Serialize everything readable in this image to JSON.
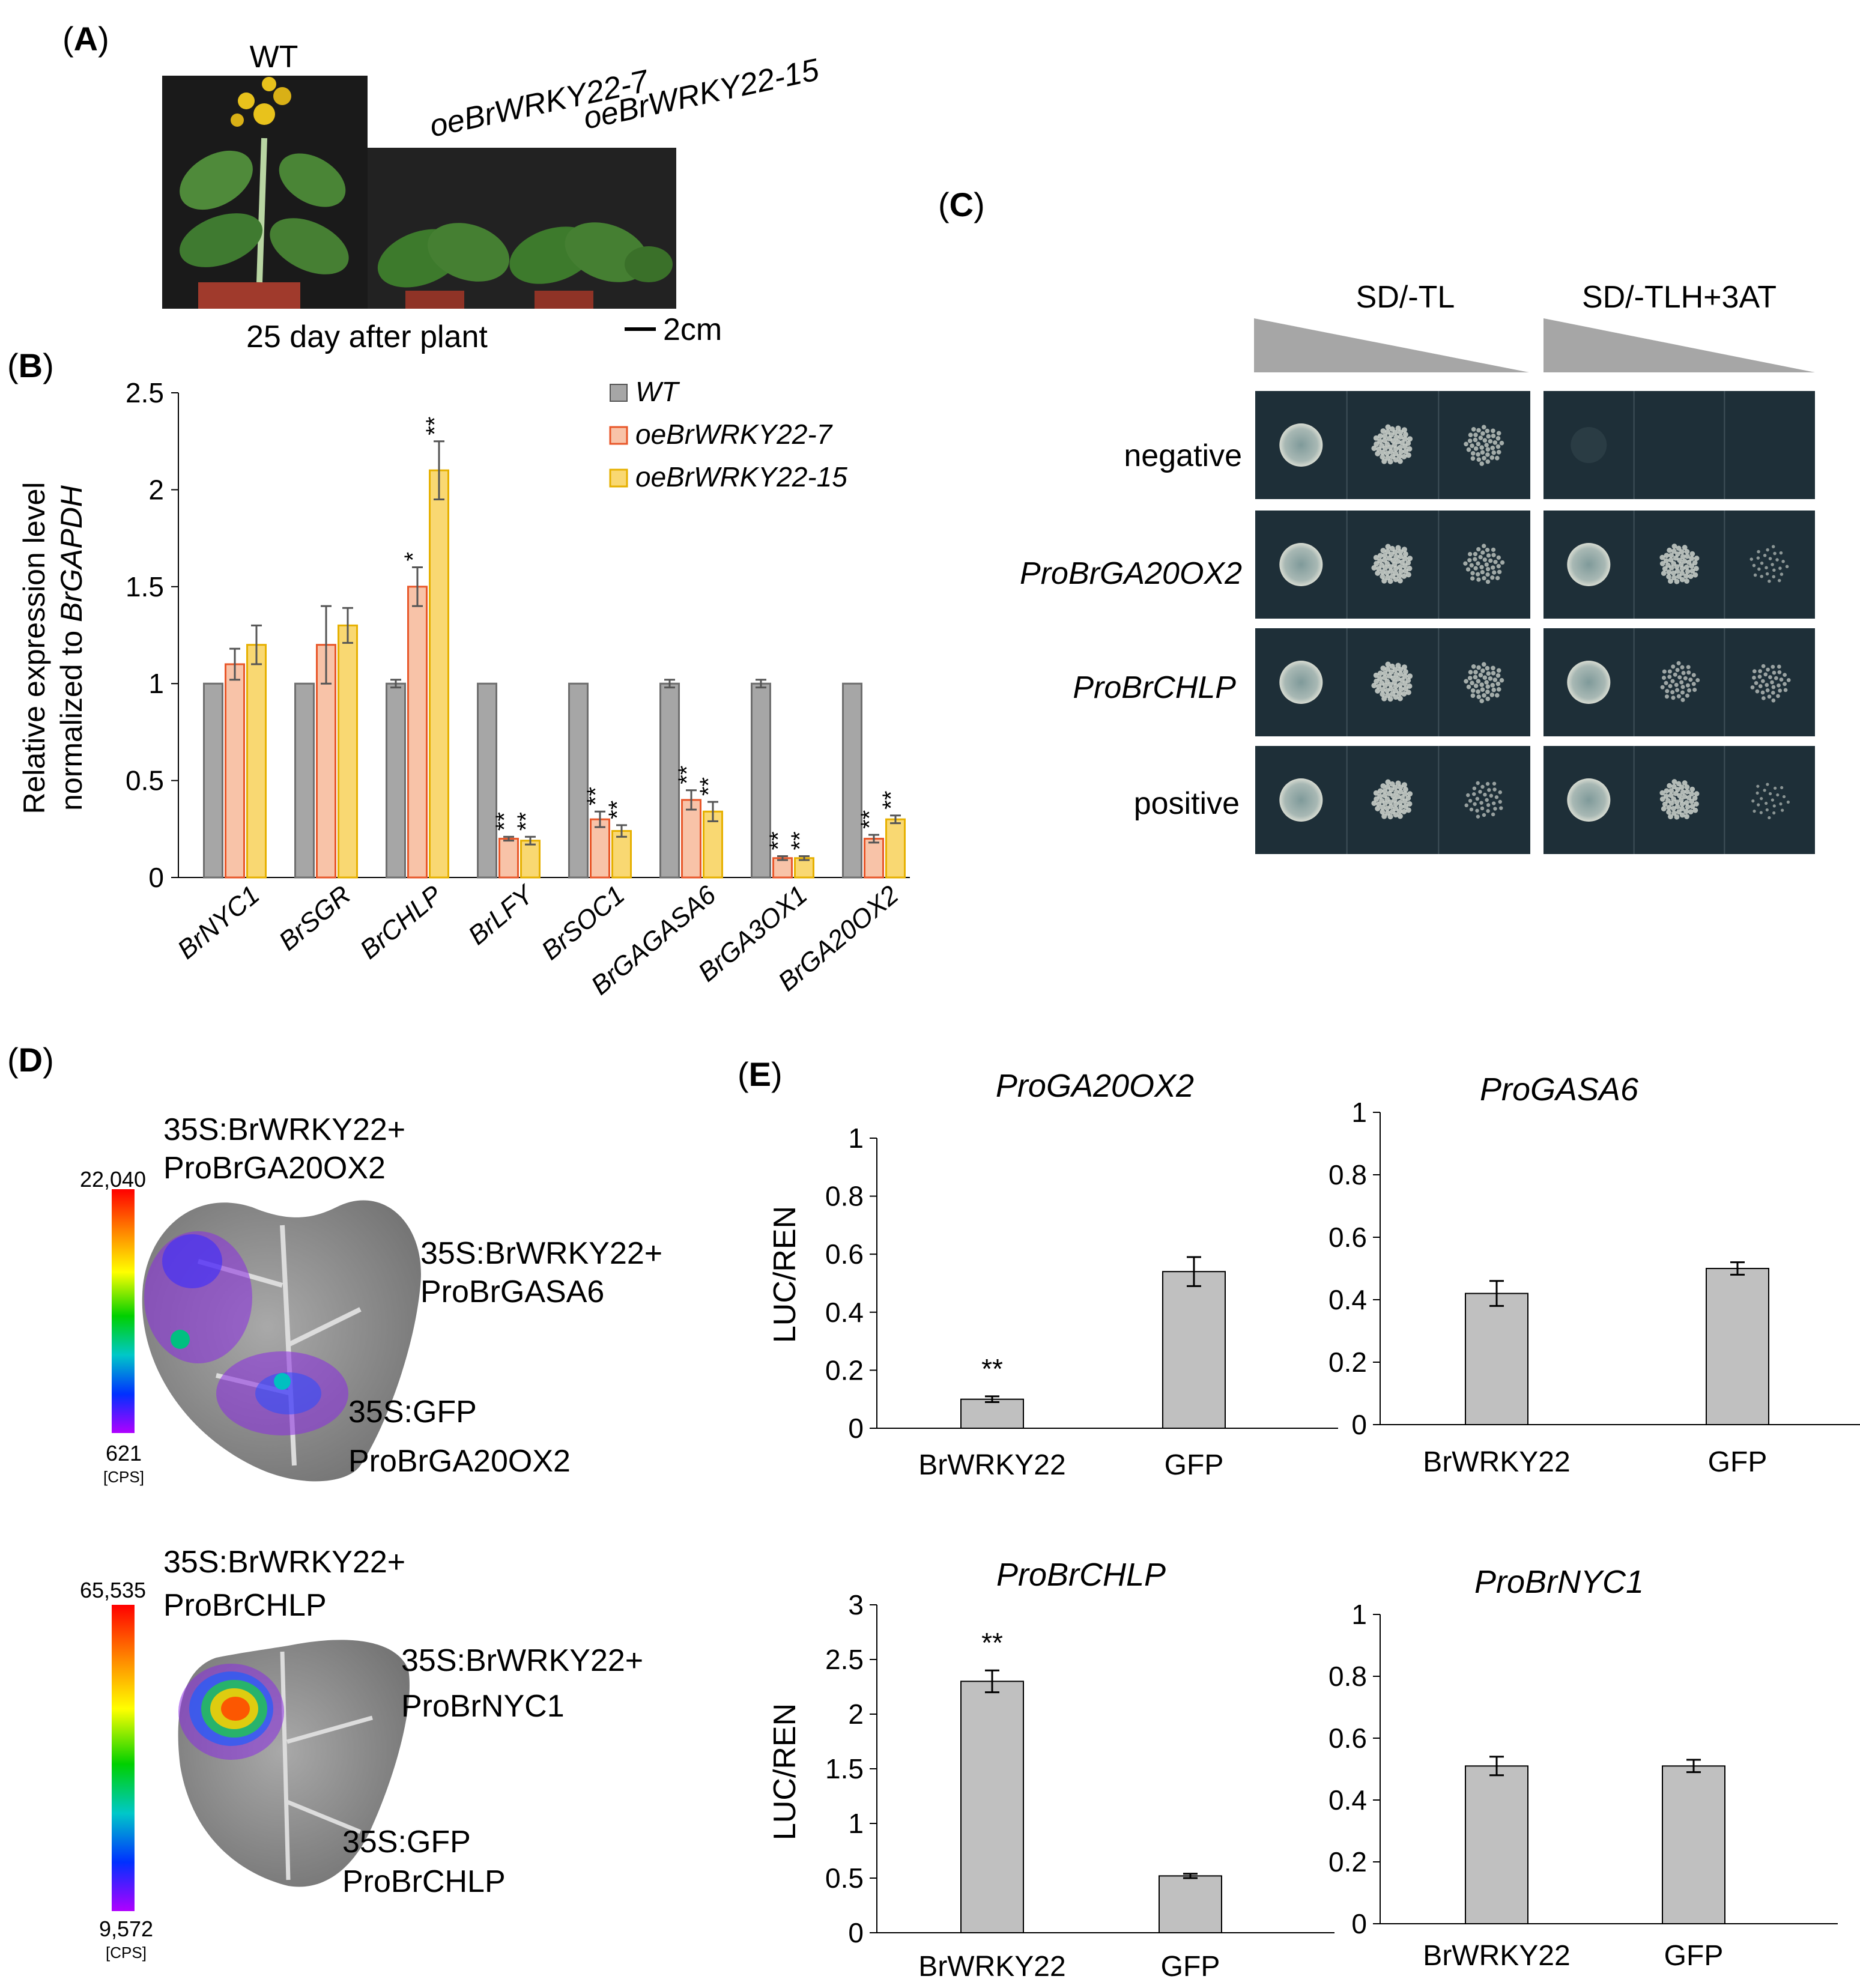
{
  "panels": {
    "a": {
      "label": "A",
      "wt_label": "WT",
      "line7_label": "oeBrWRKY22-7",
      "line15_label": "oeBrWRKY22-15",
      "caption": "25 day after plant",
      "scale_label": "2cm"
    },
    "b": {
      "label": "B"
    },
    "c": {
      "label": "C",
      "media": [
        "SD/-TL",
        "SD/-TLH+3AT"
      ],
      "rows": [
        "negative",
        "ProBrGA20OX2",
        "ProBrCHLP",
        "positive"
      ]
    },
    "d": {
      "label": "D",
      "top": {
        "scale_max": "22,040",
        "scale_min": "621",
        "scale_unit": "[CPS]",
        "label_a1": "35S:BrWRKY22+",
        "label_a2": "ProBrGA20OX2",
        "label_b1": "35S:BrWRKY22+",
        "label_b2": "ProBrGASA6",
        "label_c1": "35S:GFP",
        "label_c2": "ProBrGA20OX2"
      },
      "bottom": {
        "scale_max": "65,535",
        "scale_min": "9,572",
        "scale_unit": "[CPS]",
        "label_a1": "35S:BrWRKY22+",
        "label_a2": "ProBrCHLP",
        "label_b1": "35S:BrWRKY22+",
        "label_b2": "ProBrNYC1",
        "label_c1": "35S:GFP",
        "label_c2": "ProBrCHLP"
      }
    },
    "e": {
      "label": "E"
    }
  },
  "colors": {
    "wt": "#a6a6a6",
    "line7": "#f8c3a8",
    "line7_edge": "#e8572a",
    "line15": "#f9d872",
    "line15_edge": "#e6b000",
    "bar_e": "#c0c0c0",
    "spot_bg": "#1e2f38",
    "spot": "#c9cfc9"
  },
  "chart_data": [
    {
      "type": "bar",
      "panel": "B",
      "ylabel_line1": "Relative expression level",
      "ylabel_line2_prefix": "normalized to ",
      "ylabel_line2_gene": "BrGAPDH",
      "ylim": [
        0,
        2.5
      ],
      "yticks": [
        0,
        0.5,
        1,
        1.5,
        2,
        2.5
      ],
      "ytick_labels": [
        "0",
        "0.5",
        "1",
        "1.5",
        "2",
        "2.5"
      ],
      "legend_position": "top-right",
      "categories": [
        "BrNYC1",
        "BrSGR",
        "BrCHLP",
        "BrLFY",
        "BrSOC1",
        "BrGAGASA6",
        "BrGA3OX1",
        "BrGA20OX2"
      ],
      "series": [
        {
          "name": "WT",
          "values": [
            1,
            1,
            1,
            1,
            1,
            1,
            1,
            1
          ],
          "errors": [
            0,
            0,
            0.02,
            0,
            0,
            0.02,
            0.02,
            0
          ],
          "marks": [
            "",
            "",
            "",
            "",
            "",
            "",
            "",
            ""
          ]
        },
        {
          "name": "oeBrWRKY22-7",
          "values": [
            1.1,
            1.2,
            1.5,
            0.2,
            0.3,
            0.4,
            0.1,
            0.2
          ],
          "errors": [
            0.08,
            0.2,
            0.1,
            0.01,
            0.04,
            0.05,
            0.01,
            0.02
          ],
          "marks": [
            "",
            "",
            "*",
            "**",
            "**",
            "**",
            "**",
            "**"
          ]
        },
        {
          "name": "oeBrWRKY22-15",
          "values": [
            1.2,
            1.3,
            2.1,
            0.19,
            0.24,
            0.34,
            0.1,
            0.3
          ],
          "errors": [
            0.1,
            0.09,
            0.15,
            0.02,
            0.03,
            0.05,
            0.01,
            0.02
          ],
          "marks": [
            "",
            "",
            "**",
            "**",
            "**",
            "**",
            "**",
            "**"
          ]
        }
      ]
    },
    {
      "type": "bar",
      "panel": "E",
      "title": "ProGA20OX2",
      "ylabel": "LUC/REN",
      "ylim": [
        0,
        1
      ],
      "yticks": [
        0,
        0.2,
        0.4,
        0.6,
        0.8,
        1
      ],
      "ytick_labels": [
        "0",
        "0.2",
        "0.4",
        "0.6",
        "0.8",
        "1"
      ],
      "categories": [
        "BrWRKY22",
        "GFP"
      ],
      "values": [
        0.1,
        0.54
      ],
      "errors": [
        0.01,
        0.05
      ],
      "marks": [
        "**",
        ""
      ]
    },
    {
      "type": "bar",
      "panel": "E",
      "title": "ProGASA6",
      "ylabel": "",
      "ylim": [
        0,
        1
      ],
      "yticks": [
        0,
        0.2,
        0.4,
        0.6,
        0.8,
        1
      ],
      "ytick_labels": [
        "0",
        "0.2",
        "0.4",
        "0.6",
        "0.8",
        "1"
      ],
      "categories": [
        "BrWRKY22",
        "GFP"
      ],
      "values": [
        0.42,
        0.5
      ],
      "errors": [
        0.04,
        0.02
      ],
      "marks": [
        "",
        ""
      ]
    },
    {
      "type": "bar",
      "panel": "E",
      "title": "ProBrCHLP",
      "ylabel": "LUC/REN",
      "ylim": [
        0,
        3
      ],
      "yticks": [
        0,
        0.5,
        1,
        1.5,
        2,
        2.5,
        3
      ],
      "ytick_labels": [
        "0",
        "0.5",
        "1",
        "1.5",
        "2",
        "2.5",
        "3"
      ],
      "categories": [
        "BrWRKY22",
        "GFP"
      ],
      "values": [
        2.3,
        0.52
      ],
      "errors": [
        0.1,
        0.02
      ],
      "marks": [
        "**",
        ""
      ]
    },
    {
      "type": "bar",
      "panel": "E",
      "title": "ProBrNYC1",
      "ylabel": "",
      "ylim": [
        0,
        1
      ],
      "yticks": [
        0,
        0.2,
        0.4,
        0.6,
        0.8,
        1
      ],
      "ytick_labels": [
        "0",
        "0.2",
        "0.4",
        "0.6",
        "0.8",
        "1"
      ],
      "categories": [
        "BrWRKY22",
        "GFP"
      ],
      "values": [
        0.51,
        0.51
      ],
      "errors": [
        0.03,
        0.02
      ],
      "marks": [
        "",
        ""
      ]
    }
  ]
}
